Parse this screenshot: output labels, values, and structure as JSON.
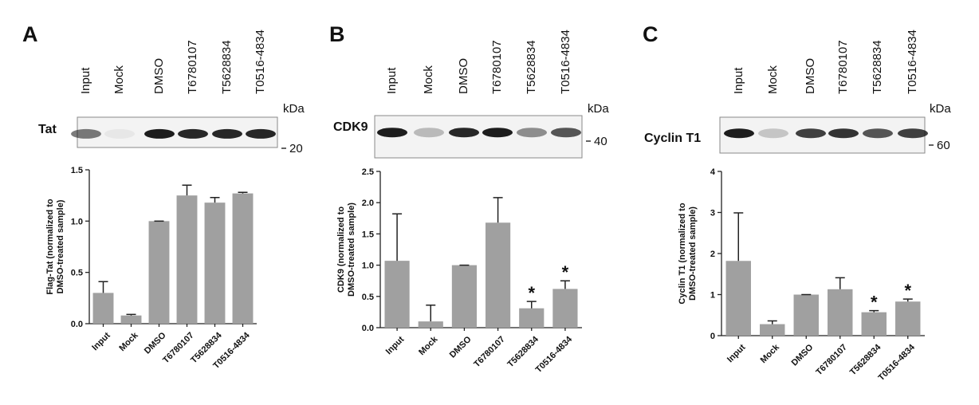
{
  "chart_data": [
    {
      "type": "bar",
      "panel": "A",
      "blot": {
        "label": "Tat",
        "unit": "kDa",
        "marker": "20"
      },
      "ylabel": [
        "Flag-Tat (normalized to",
        "DMSO-treated sample)"
      ],
      "categories": [
        "Input",
        "Mock",
        "DMSO",
        "T6780107",
        "T5628834",
        "T0516-4834"
      ],
      "values": [
        0.3,
        0.08,
        1.0,
        1.25,
        1.18,
        1.27
      ],
      "errors": [
        0.11,
        0.01,
        0,
        0.1,
        0.05,
        0.01
      ],
      "significance": [
        null,
        null,
        null,
        null,
        null,
        null
      ],
      "color": "#a0a0a0",
      "ylim": [
        0,
        1.5
      ],
      "yticks": [
        {
          "value": 0,
          "label": "0.0"
        },
        0.5,
        {
          "value": 1,
          "label": "1.0"
        },
        1.5
      ]
    },
    {
      "type": "bar",
      "panel": "B",
      "blot": {
        "label": "CDK9",
        "unit": "kDa",
        "marker": "40"
      },
      "ylabel": [
        "CDK9 (normalized to",
        "DMSO-treated sample)"
      ],
      "categories": [
        "Input",
        "Mock",
        "DMSO",
        "T6780107",
        "T5628834",
        "T0516-4834"
      ],
      "values": [
        1.07,
        0.1,
        1.0,
        1.68,
        0.31,
        0.62
      ],
      "errors": [
        0.75,
        0.26,
        0,
        0.4,
        0.11,
        0.13
      ],
      "significance": [
        null,
        null,
        null,
        null,
        "*",
        "*"
      ],
      "color": "#a0a0a0",
      "ylim": [
        0,
        2.5
      ],
      "yticks": [
        {
          "value": 0,
          "label": "0.0"
        },
        0.5,
        {
          "value": 1,
          "label": "1.0"
        },
        1.5,
        {
          "value": 2,
          "label": "2.0"
        },
        2.5
      ]
    },
    {
      "type": "bar",
      "panel": "C",
      "blot": {
        "label": "Cyclin T1",
        "unit": "kDa",
        "marker": "60"
      },
      "ylabel": [
        "Cyclin T1 (normalized to",
        "DMSO-treated sample)"
      ],
      "categories": [
        "Input",
        "Mock",
        "DMSO",
        "T6780107",
        "T5628834",
        "T0516-4834"
      ],
      "values": [
        1.82,
        0.28,
        1.0,
        1.13,
        0.57,
        0.83
      ],
      "errors": [
        1.17,
        0.08,
        0,
        0.28,
        0.04,
        0.06
      ],
      "significance": [
        null,
        null,
        null,
        null,
        "*",
        "*"
      ],
      "color": "#a0a0a0",
      "ylim": [
        0,
        4
      ],
      "yticks": [
        0,
        1,
        2,
        3,
        4
      ]
    }
  ]
}
